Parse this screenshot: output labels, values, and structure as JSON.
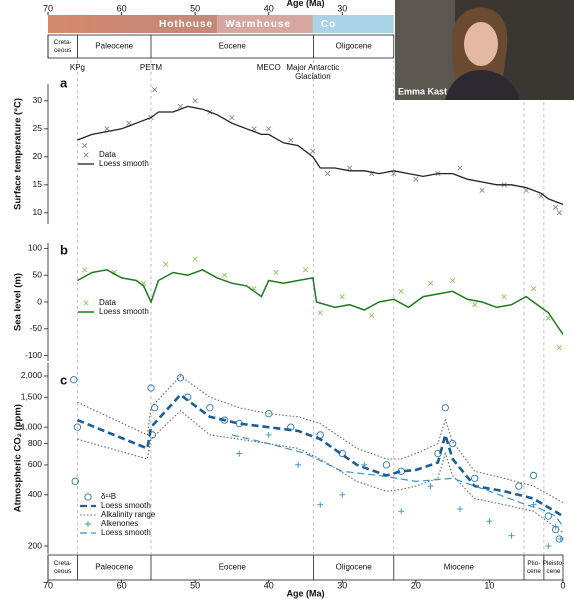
{
  "timescale": {
    "climate_states": [
      {
        "label": "Hothouse",
        "from": 56,
        "to": 47,
        "color": "#c88877"
      },
      {
        "label": "Warmhouse",
        "from": 47,
        "to": 34,
        "color": "#d6a7a0"
      },
      {
        "label": "Co",
        "from": 34,
        "to": 23,
        "color": "#a9d3e6"
      }
    ],
    "top_epochs": [
      {
        "label": [
          "Creta-",
          "ceous"
        ],
        "from": 70,
        "to": 66
      },
      {
        "label": [
          "Paleocene"
        ],
        "from": 66,
        "to": 56
      },
      {
        "label": [
          "Eocene"
        ],
        "from": 56,
        "to": 33.9
      },
      {
        "label": [
          "Oligocene"
        ],
        "from": 33.9,
        "to": 23
      }
    ],
    "bottom_epochs": [
      {
        "label": [
          "Creta-",
          "ceous"
        ],
        "from": 70,
        "to": 66
      },
      {
        "label": [
          "Paleocene"
        ],
        "from": 66,
        "to": 56
      },
      {
        "label": [
          "Eocene"
        ],
        "from": 56,
        "to": 33.9
      },
      {
        "label": [
          "Oligocene"
        ],
        "from": 33.9,
        "to": 23
      },
      {
        "label": [
          "Miocene"
        ],
        "from": 23,
        "to": 5.3
      },
      {
        "label": [
          "Plio-",
          "cene"
        ],
        "from": 5.3,
        "to": 2.6
      },
      {
        "label": [
          "Pleisto-",
          "cene"
        ],
        "from": 2.6,
        "to": 0
      }
    ],
    "events": [
      {
        "label": [
          "KPg"
        ],
        "age": 66
      },
      {
        "label": [
          "PETM"
        ],
        "age": 56
      },
      {
        "label": [
          "MECO"
        ],
        "age": 40
      },
      {
        "label": [
          "Major Antarctic",
          "Glaciation"
        ],
        "age": 34
      }
    ]
  },
  "chart_data": [
    {
      "type": "line",
      "panel": "a",
      "y_label": "Surface temperature (°C)",
      "x_label": "Age (Ma)",
      "xlim": [
        70,
        0
      ],
      "xticks": [
        70,
        60,
        50,
        40,
        30,
        20,
        10,
        0
      ],
      "ylim": [
        8,
        33
      ],
      "yticks": [
        30,
        25,
        20,
        15,
        10
      ],
      "series": [
        {
          "name": "Data",
          "marker": "x",
          "color": "#8a8a8a",
          "x": [
            65,
            62,
            59,
            56,
            55.5,
            52,
            50,
            48,
            45,
            42,
            40,
            37,
            34,
            32,
            29,
            26,
            23,
            20,
            17,
            14,
            11,
            8,
            5,
            3,
            1,
            0.5
          ],
          "values": [
            22,
            25,
            26,
            27,
            32,
            29,
            30,
            28,
            27,
            25,
            25,
            23,
            21,
            17,
            18,
            17,
            17,
            16,
            17,
            18,
            14,
            15,
            14,
            13,
            11,
            10
          ]
        },
        {
          "name": "Loess smooth",
          "line": "solid",
          "width": 1.3,
          "color": "#222222",
          "x": [
            66,
            64,
            62,
            60,
            58,
            56,
            55,
            53,
            51,
            49,
            47,
            45,
            43,
            41,
            40,
            38,
            36,
            34,
            33,
            31,
            29,
            27,
            25,
            23,
            21,
            19,
            17,
            15,
            13,
            11,
            9,
            7,
            5,
            3,
            2,
            1,
            0
          ],
          "values": [
            23,
            24,
            24.5,
            25,
            26,
            27,
            28,
            28,
            29,
            28.5,
            27.5,
            26,
            25,
            24,
            24,
            22.5,
            22,
            20,
            18,
            18,
            17.5,
            17.5,
            17,
            17.5,
            17,
            16.5,
            17,
            17,
            16,
            15.5,
            15,
            15,
            14.5,
            13.5,
            12.5,
            12,
            11.5
          ]
        }
      ]
    },
    {
      "type": "line",
      "panel": "b",
      "y_label": "Sea level (m)",
      "xlim": [
        70,
        0
      ],
      "ylim": [
        -110,
        110
      ],
      "yticks": [
        100,
        50,
        0,
        -50,
        -100
      ],
      "series": [
        {
          "name": "Data",
          "marker": "x",
          "color": "#8cc65a",
          "x": [
            65,
            61,
            57,
            54,
            50,
            46,
            42,
            39,
            35,
            33,
            30,
            26,
            22,
            18,
            15,
            12,
            8,
            4,
            2,
            0.5
          ],
          "values": [
            60,
            55,
            35,
            70,
            80,
            50,
            25,
            55,
            60,
            -20,
            10,
            -25,
            20,
            35,
            40,
            -5,
            10,
            25,
            -30,
            -85
          ]
        },
        {
          "name": "Loess smooth",
          "line": "solid",
          "width": 1.5,
          "color": "#1e7a1e",
          "x": [
            66,
            64,
            62,
            60,
            58,
            57,
            56,
            55,
            53,
            51,
            49,
            47,
            45,
            43,
            41,
            40,
            38,
            36,
            34,
            33.5,
            31,
            29,
            27,
            25,
            23,
            21,
            19,
            17,
            15,
            13,
            11,
            9,
            7,
            5,
            3,
            2,
            1,
            0
          ],
          "values": [
            40,
            55,
            60,
            45,
            40,
            30,
            0,
            40,
            55,
            50,
            60,
            45,
            35,
            30,
            10,
            40,
            35,
            40,
            45,
            0,
            -10,
            -5,
            -15,
            0,
            5,
            -10,
            10,
            15,
            20,
            5,
            0,
            -10,
            -5,
            10,
            -10,
            -20,
            -40,
            -60
          ]
        }
      ]
    },
    {
      "type": "line",
      "panel": "c",
      "y_label": "Atmospheric CO₂ (ppm)",
      "x_label": "Age (Ma)",
      "log_y": true,
      "xlim": [
        70,
        0
      ],
      "xticks": [
        70,
        60,
        50,
        40,
        30,
        20,
        10,
        0
      ],
      "ylim": [
        180,
        2400
      ],
      "yticks": [
        {
          "value": 2000,
          "label": "2,000"
        },
        {
          "value": 1500,
          "label": "1,500"
        },
        {
          "value": 1000,
          "label": "1,000"
        },
        800,
        600,
        400,
        200
      ],
      "series": [
        {
          "name": "δ¹¹B",
          "marker": "circle",
          "color": "#2a7bb0",
          "x": [
            66.5,
            66,
            66.3,
            56,
            55.8,
            55.5,
            52,
            51,
            48,
            46,
            44,
            40,
            37,
            33,
            30,
            24,
            22,
            17,
            16,
            15,
            12,
            6,
            4,
            2,
            1,
            0.5
          ],
          "values": [
            1900,
            1000,
            480,
            1700,
            900,
            1300,
            1950,
            1500,
            1300,
            1100,
            1050,
            1200,
            1000,
            900,
            700,
            600,
            550,
            700,
            1300,
            800,
            500,
            450,
            520,
            300,
            250,
            220
          ]
        },
        {
          "name": "Loess smooth",
          "line": "dashed",
          "width": 2.6,
          "color": "#1b5e94",
          "x": [
            66,
            56.5,
            56,
            52,
            48,
            44,
            40,
            36,
            33,
            28,
            24,
            22,
            20,
            17,
            16,
            15,
            12,
            8,
            4,
            0
          ],
          "values": [
            1100,
            750,
            1000,
            1550,
            1150,
            1050,
            1000,
            950,
            850,
            600,
            520,
            550,
            560,
            620,
            900,
            650,
            450,
            420,
            380,
            300
          ]
        },
        {
          "name": "Alkalinity range",
          "band": true,
          "line": "dotted",
          "width": 1.1,
          "color": "#666666",
          "x": [
            66,
            56.5,
            56,
            52,
            48,
            44,
            40,
            36,
            33,
            28,
            24,
            22,
            20,
            17,
            16,
            15,
            12,
            8,
            4,
            0
          ],
          "upper": [
            1400,
            900,
            1300,
            2000,
            1500,
            1300,
            1200,
            1150,
            1050,
            750,
            650,
            650,
            700,
            800,
            1100,
            820,
            550,
            500,
            450,
            360
          ],
          "lower": [
            850,
            650,
            850,
            1250,
            900,
            850,
            800,
            750,
            650,
            480,
            420,
            430,
            450,
            500,
            700,
            520,
            380,
            350,
            320,
            240
          ]
        },
        {
          "name": "Alkenones",
          "marker": "plus",
          "color": "#3b93c9",
          "x": [
            44,
            40,
            36,
            33,
            30,
            27,
            22,
            18,
            14,
            10,
            7,
            4,
            2,
            1,
            0.3
          ],
          "values": [
            700,
            900,
            600,
            350,
            400,
            600,
            320,
            450,
            330,
            280,
            230,
            350,
            200,
            260,
            220
          ]
        },
        {
          "name": "Loess smooth",
          "line": "dashed",
          "width": 1.2,
          "color": "#3b93c9",
          "x": [
            45,
            40,
            35,
            30,
            25,
            20,
            15,
            10,
            5,
            3,
            1,
            0
          ],
          "values": [
            900,
            800,
            700,
            550,
            520,
            480,
            500,
            420,
            350,
            330,
            300,
            260
          ]
        }
      ]
    }
  ],
  "video": {
    "name": "Emma Kast"
  }
}
